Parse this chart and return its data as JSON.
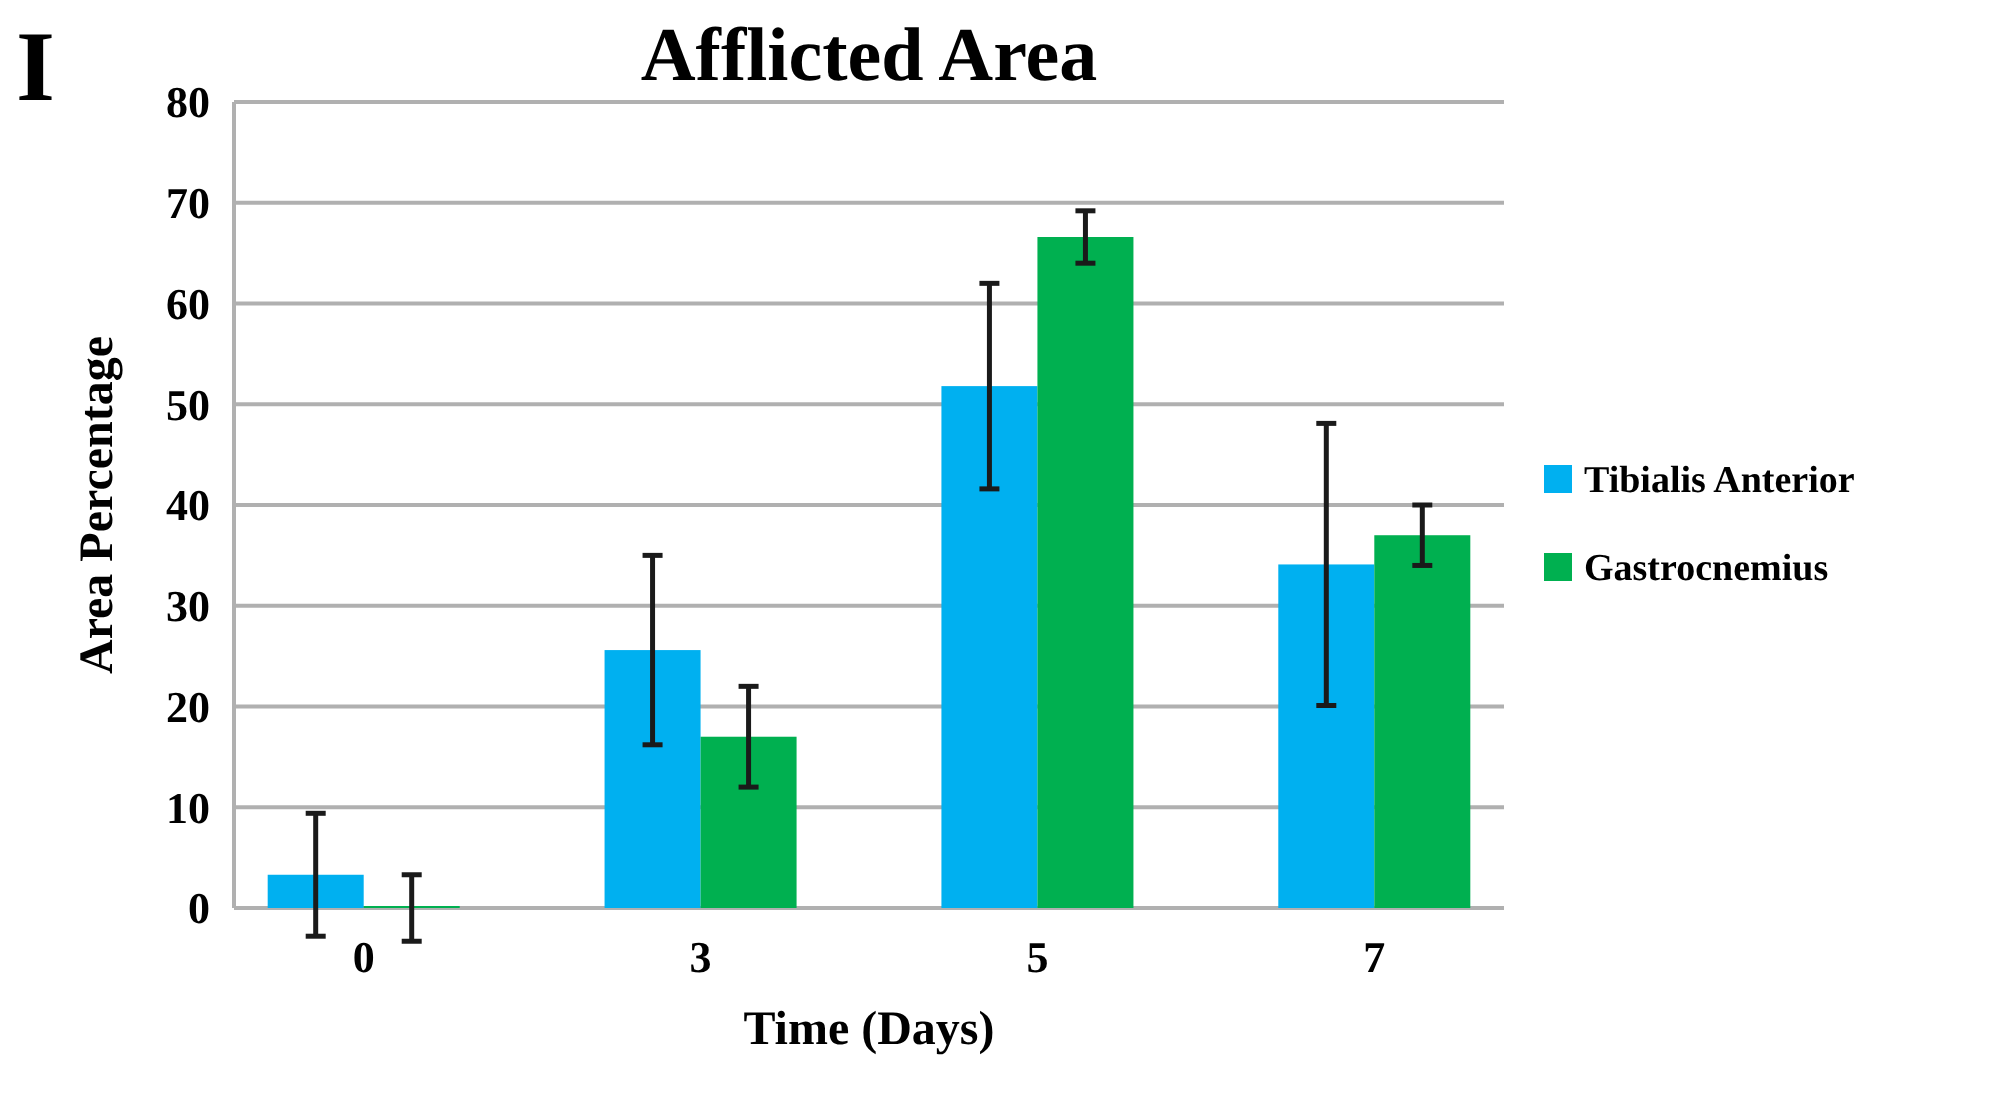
{
  "chart_data": {
    "type": "bar",
    "title": "Afflicted Area",
    "xlabel": "Time (Days)",
    "ylabel": "Area Percentage",
    "annotations": [
      "I"
    ],
    "categories": [
      "0",
      "3",
      "5",
      "7"
    ],
    "series": [
      {
        "name": "Tibialis Anterior",
        "color": "#00b0f0",
        "values": [
          3.3,
          25.6,
          51.8,
          34.1
        ],
        "errors": [
          6.1,
          9.4,
          10.2,
          14
        ]
      },
      {
        "name": "Gastrocnemius",
        "color": "#00b050",
        "values": [
          0,
          17,
          66.6,
          37
        ],
        "errors": [
          3.3,
          5,
          2.6,
          3
        ]
      }
    ],
    "ylim": [
      0,
      80
    ],
    "yticks": [
      0,
      10,
      20,
      30,
      40,
      50,
      60,
      70,
      80
    ],
    "grid": "y",
    "legend": "right"
  }
}
